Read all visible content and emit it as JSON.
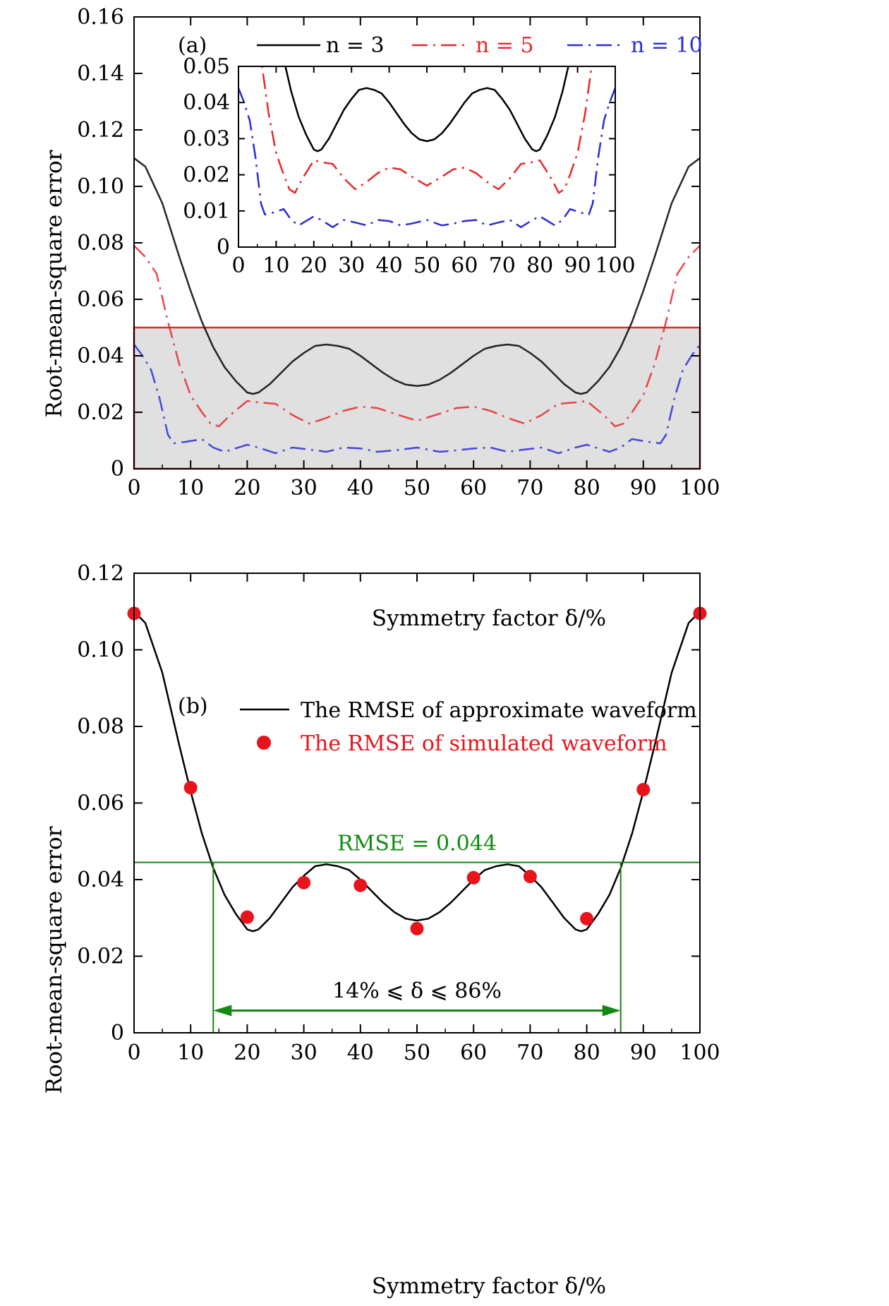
{
  "chart_data": [
    {
      "type": "line",
      "panel_label": "(a)",
      "xlabel": "Symmetry factor δ/%",
      "ylabel": "Root-mean-square error",
      "xlim": [
        0,
        100
      ],
      "ylim": [
        0,
        0.16
      ],
      "xticks": [
        0,
        10,
        20,
        30,
        40,
        50,
        60,
        70,
        80,
        90,
        100
      ],
      "xtick_labels": [
        "0",
        "10",
        "20",
        "30",
        "40",
        "50",
        "60",
        "70",
        "80",
        "90",
        "100"
      ],
      "yticks": [
        0,
        0.02,
        0.04,
        0.06,
        0.08,
        0.1,
        0.12,
        0.14,
        0.16
      ],
      "ytick_labels": [
        "0",
        "0.02",
        "0.04",
        "0.06",
        "0.08",
        "0.10",
        "0.12",
        "0.14",
        "0.16"
      ],
      "legend": {
        "placement": "top",
        "entries": [
          "n = 3",
          "n = 5",
          "n = 10"
        ]
      },
      "highlight_region": {
        "x": [
          0,
          100
        ],
        "y": [
          0,
          0.05
        ],
        "fill": "#e0e0e0",
        "border": "#e8282b"
      },
      "series": [
        {
          "name": "n = 3",
          "color": "#000000",
          "style": "solid",
          "x": [
            0,
            2,
            5,
            8,
            10,
            12,
            14,
            16,
            18,
            20,
            21,
            22,
            24,
            26,
            28,
            30,
            32,
            34,
            36,
            38,
            40,
            42,
            44,
            46,
            48,
            50,
            52,
            54,
            56,
            58,
            60,
            62,
            64,
            66,
            68,
            70,
            72,
            74,
            76,
            78,
            79,
            80,
            82,
            84,
            86,
            88,
            90,
            92,
            95,
            98,
            100
          ],
          "y": [
            0.11,
            0.107,
            0.094,
            0.075,
            0.063,
            0.052,
            0.043,
            0.036,
            0.031,
            0.027,
            0.0265,
            0.027,
            0.03,
            0.034,
            0.038,
            0.041,
            0.0435,
            0.044,
            0.0435,
            0.0425,
            0.04,
            0.037,
            0.034,
            0.0315,
            0.0298,
            0.0293,
            0.0298,
            0.0315,
            0.034,
            0.037,
            0.04,
            0.0425,
            0.0435,
            0.044,
            0.0435,
            0.041,
            0.038,
            0.034,
            0.03,
            0.027,
            0.0265,
            0.027,
            0.031,
            0.036,
            0.043,
            0.052,
            0.063,
            0.075,
            0.094,
            0.107,
            0.11
          ]
        },
        {
          "name": "n = 5",
          "color": "#e8282b",
          "style": "dashdot",
          "x": [
            0,
            2,
            4,
            6,
            8,
            10,
            12,
            13.5,
            15,
            17,
            20,
            22,
            25,
            28,
            31,
            34,
            37,
            40,
            43,
            46,
            50,
            54,
            57,
            60,
            63,
            66,
            69,
            72,
            75,
            78,
            80,
            83,
            85,
            86.5,
            88,
            90,
            92,
            94,
            96,
            98,
            100
          ],
          "y": [
            0.079,
            0.075,
            0.069,
            0.052,
            0.037,
            0.026,
            0.02,
            0.016,
            0.015,
            0.019,
            0.024,
            0.0235,
            0.023,
            0.019,
            0.016,
            0.018,
            0.0205,
            0.022,
            0.0215,
            0.0195,
            0.017,
            0.0195,
            0.0215,
            0.022,
            0.0205,
            0.018,
            0.016,
            0.019,
            0.023,
            0.0235,
            0.024,
            0.019,
            0.015,
            0.016,
            0.02,
            0.026,
            0.037,
            0.052,
            0.069,
            0.075,
            0.079
          ]
        },
        {
          "name": "n = 10",
          "color": "#2b2bd9",
          "style": "dashdot",
          "x": [
            0,
            1.5,
            3,
            4.5,
            6,
            7,
            9,
            12,
            14,
            16,
            20,
            22,
            25,
            28,
            31,
            34,
            37,
            40,
            43,
            46,
            50,
            54,
            57,
            60,
            63,
            66,
            69,
            72,
            75,
            78,
            80,
            84,
            86,
            88,
            91,
            93,
            94,
            95.5,
            97,
            98.5,
            100
          ],
          "y": [
            0.044,
            0.04,
            0.035,
            0.025,
            0.012,
            0.009,
            0.0095,
            0.0105,
            0.0075,
            0.006,
            0.0085,
            0.0075,
            0.0055,
            0.0075,
            0.0068,
            0.006,
            0.0075,
            0.0072,
            0.006,
            0.0065,
            0.0075,
            0.006,
            0.0065,
            0.0072,
            0.0075,
            0.006,
            0.0068,
            0.0075,
            0.0055,
            0.0075,
            0.0085,
            0.006,
            0.0075,
            0.0105,
            0.0095,
            0.009,
            0.012,
            0.025,
            0.035,
            0.04,
            0.044
          ]
        }
      ],
      "inset": {
        "xlim": [
          0,
          100
        ],
        "ylim": [
          0,
          0.05
        ],
        "xticks": [
          0,
          10,
          20,
          30,
          40,
          50,
          60,
          70,
          80,
          90,
          100
        ],
        "xtick_labels": [
          "0",
          "10",
          "20",
          "30",
          "40",
          "50",
          "60",
          "70",
          "80",
          "90",
          "100"
        ],
        "yticks": [
          0,
          0.01,
          0.02,
          0.03,
          0.04,
          0.05
        ],
        "ytick_labels": [
          "0",
          "0.01",
          "0.02",
          "0.03",
          "0.04",
          "0.05"
        ]
      }
    },
    {
      "type": "line",
      "panel_label": "(b)",
      "xlabel": "Symmetry factor δ/%",
      "ylabel": "Root-mean-square error",
      "xlim": [
        0,
        100
      ],
      "ylim": [
        0,
        0.12
      ],
      "xticks": [
        0,
        10,
        20,
        30,
        40,
        50,
        60,
        70,
        80,
        90,
        100
      ],
      "xtick_labels": [
        "0",
        "10",
        "20",
        "30",
        "40",
        "50",
        "60",
        "70",
        "80",
        "90",
        "100"
      ],
      "yticks": [
        0,
        0.02,
        0.04,
        0.06,
        0.08,
        0.1,
        0.12
      ],
      "ytick_labels": [
        "0",
        "0.02",
        "0.04",
        "0.06",
        "0.08",
        "0.10",
        "0.12"
      ],
      "legend": {
        "placement": "top",
        "entries": [
          "The RMSE of approximate waveform",
          "The RMSE of simulated waveform"
        ]
      },
      "series": [
        {
          "name": "The RMSE of approximate waveform",
          "color": "#000000",
          "style": "solid",
          "x": [
            0,
            2,
            5,
            8,
            10,
            12,
            14,
            16,
            18,
            20,
            21,
            22,
            24,
            26,
            28,
            30,
            32,
            34,
            36,
            38,
            40,
            42,
            44,
            46,
            48,
            50,
            52,
            54,
            56,
            58,
            60,
            62,
            64,
            66,
            68,
            70,
            72,
            74,
            76,
            78,
            79,
            80,
            82,
            84,
            86,
            88,
            90,
            92,
            95,
            98,
            100
          ],
          "y": [
            0.11,
            0.107,
            0.094,
            0.075,
            0.063,
            0.052,
            0.043,
            0.036,
            0.031,
            0.027,
            0.0265,
            0.027,
            0.03,
            0.034,
            0.038,
            0.041,
            0.0435,
            0.044,
            0.0435,
            0.0425,
            0.04,
            0.037,
            0.034,
            0.0315,
            0.0298,
            0.0293,
            0.0298,
            0.0315,
            0.034,
            0.037,
            0.04,
            0.0425,
            0.0435,
            0.044,
            0.0435,
            0.041,
            0.038,
            0.034,
            0.03,
            0.027,
            0.0265,
            0.027,
            0.031,
            0.036,
            0.043,
            0.052,
            0.063,
            0.075,
            0.094,
            0.107,
            0.11
          ]
        },
        {
          "name": "The RMSE of simulated waveform",
          "color": "#e8141c",
          "style": "markers",
          "x": [
            0,
            10,
            20,
            30,
            40,
            50,
            60,
            70,
            80,
            90,
            100
          ],
          "y": [
            0.1095,
            0.064,
            0.0302,
            0.0392,
            0.0385,
            0.0272,
            0.0405,
            0.0408,
            0.0298,
            0.0635,
            0.1095
          ]
        }
      ],
      "annotations": {
        "threshold": {
          "label": "RMSE = 0.044",
          "value": 0.0445,
          "color": "#128a12"
        },
        "range": {
          "label": "14% ⩽ δ ⩽ 86%",
          "x": [
            14,
            86
          ],
          "arrow_y": 0.0058,
          "color": "#128a12"
        }
      }
    }
  ]
}
